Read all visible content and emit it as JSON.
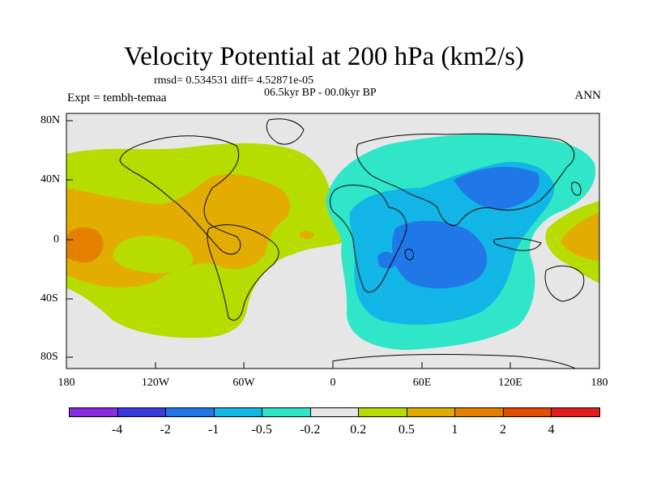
{
  "title": "Velocity Potential at 200 hPa (km2/s)",
  "stats_line": "rmsd= 0.534531 diff= 4.52871e-05",
  "period": "06.5kyr BP - 00.0kyr BP",
  "experiment": "Expt = tembh-temaa",
  "season": "ANN",
  "axes": {
    "y_ticks": [
      "80N",
      "40N",
      "0",
      "40S",
      "80S"
    ],
    "x_ticks": [
      "180",
      "120W",
      "60W",
      "0",
      "60E",
      "120E",
      "180"
    ]
  },
  "colorbar": {
    "colors": [
      "#8a2be2",
      "#3a3adf",
      "#1f77e8",
      "#12b6e6",
      "#2fe6c8",
      "#e6e6e6",
      "#b7dc00",
      "#e2ad00",
      "#e47f00",
      "#e34d00",
      "#e51b1b"
    ],
    "labels": [
      "-4",
      "-2",
      "-1",
      "-0.5",
      "-0.2",
      "0.2",
      "0.5",
      "1",
      "2",
      "4"
    ]
  }
}
